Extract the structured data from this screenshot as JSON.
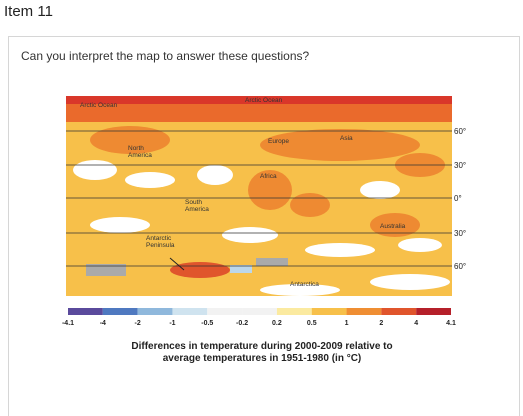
{
  "header": {
    "title": "Item 11"
  },
  "question": "Can you interpret the map to answer these questions?",
  "map": {
    "labels": [
      "Arctic Ocean",
      "Arctic Ocean",
      "North",
      "America",
      "Europe",
      "Asia",
      "Africa",
      "South",
      "America",
      "Australia",
      "Antarctic",
      "Peninsula",
      "Antarctica"
    ],
    "latitudes": [
      "60°",
      "30°",
      "0°",
      "30°",
      "60°"
    ],
    "colorbar_ticks": [
      "-4.1",
      "-4",
      "-2",
      "-1",
      "-0.5",
      "-0.2",
      "0.2",
      "0.5",
      "1",
      "2",
      "4",
      "4.1"
    ],
    "caption": [
      "Differences in temperature during 2000-2009 relative to",
      "average temperatures in 1951-1980 (in °C)"
    ]
  }
}
